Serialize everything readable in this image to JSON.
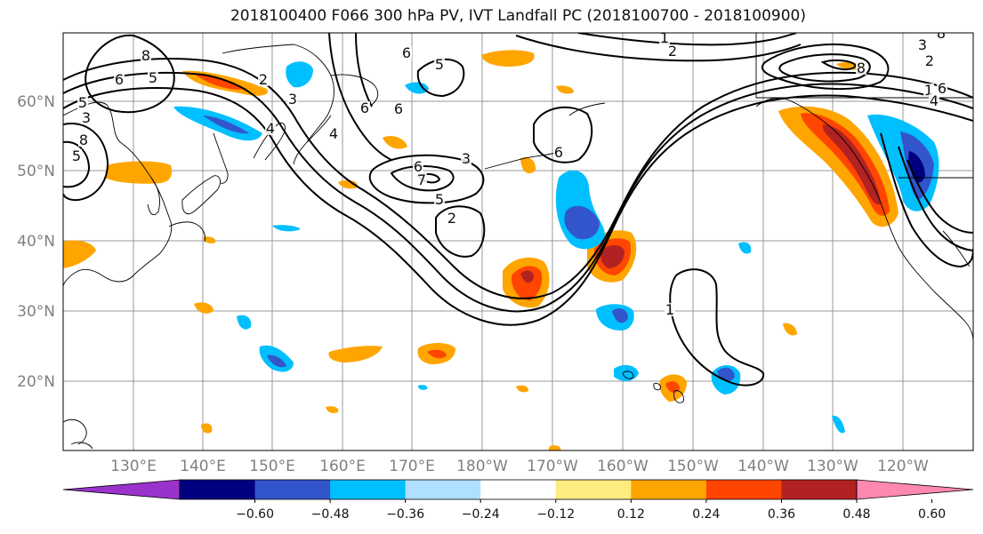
{
  "title": "2018100400 F066 300 hPa PV, IVT Landfall PC (2018100700 - 2018100900)",
  "lat_labels": [
    "60°N",
    "50°N",
    "40°N",
    "30°N",
    "20°N"
  ],
  "lon_labels": [
    "130°E",
    "140°E",
    "150°E",
    "160°E",
    "170°E",
    "180°W",
    "170°W",
    "160°W",
    "150°W",
    "140°W",
    "130°W",
    "120°W"
  ],
  "colorbar": {
    "colors": [
      "#9933cc",
      "#000080",
      "#3355cc",
      "#00bfff",
      "#b0e0ff",
      "#ffffff",
      "#ffec80",
      "#ffa500",
      "#ff4500",
      "#b22222",
      "#ff88b0"
    ],
    "tick_labels": [
      "−0.60",
      "−0.48",
      "−0.36",
      "−0.24",
      "−0.12",
      "0.12",
      "0.24",
      "0.36",
      "0.48",
      "0.60"
    ]
  },
  "contour_labels": [
    "1",
    "1",
    "1",
    "2",
    "2",
    "2",
    "2",
    "3",
    "3",
    "3",
    "3",
    "4",
    "4",
    "4",
    "5",
    "5",
    "5",
    "5",
    "5",
    "6",
    "6",
    "6",
    "6",
    "6",
    "6",
    "6",
    "7",
    "8",
    "8",
    "8",
    "8"
  ]
}
